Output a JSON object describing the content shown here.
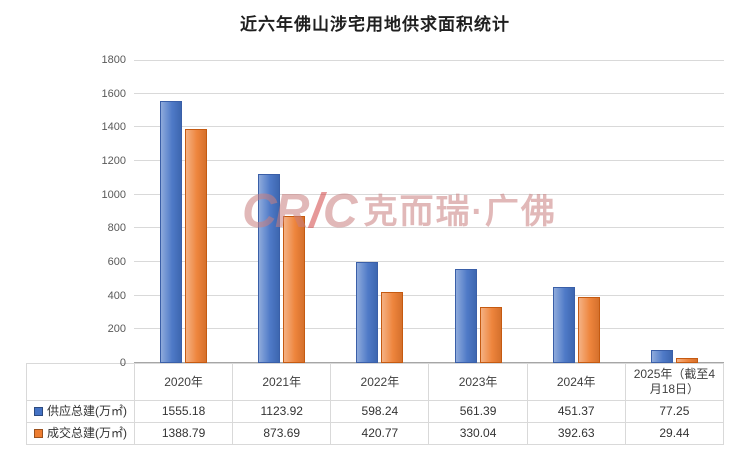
{
  "title": "近六年佛山涉宅用地供求面积统计",
  "watermark": {
    "logo_left": "CR",
    "logo_slash": "/",
    "logo_right": "C",
    "text": "克而瑞·广佛",
    "color": "#c97f7f",
    "slash_color": "#d24444"
  },
  "chart_data": {
    "type": "bar",
    "title": "近六年佛山涉宅用地供求面积统计",
    "categories": [
      "2020年",
      "2021年",
      "2022年",
      "2023年",
      "2024年",
      "2025年（截至4月18日）"
    ],
    "series": [
      {
        "name": "供应总建(万㎡)",
        "color": "#4472C4",
        "values": [
          1555.18,
          1123.92,
          598.24,
          561.39,
          451.37,
          77.25
        ]
      },
      {
        "name": "成交总建(万㎡)",
        "color": "#ED7D31",
        "values": [
          1388.79,
          873.69,
          420.77,
          330.04,
          392.63,
          29.44
        ]
      }
    ],
    "ylim": [
      0,
      1800
    ],
    "ytick_step": 200,
    "grid": true,
    "legend_position": "data-table"
  }
}
